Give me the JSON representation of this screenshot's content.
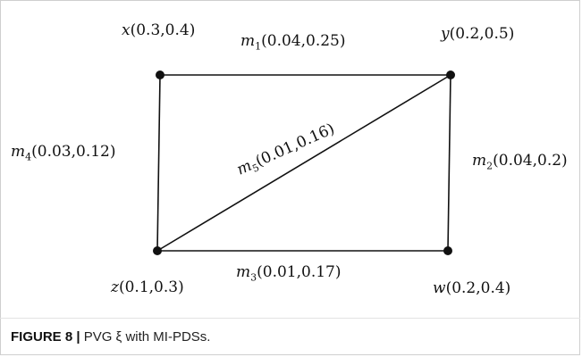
{
  "vertices": [
    {
      "id": "x",
      "name": "x",
      "value": "(0.3,0.4)"
    },
    {
      "id": "y",
      "name": "y",
      "value": "(0.2,0.5)"
    },
    {
      "id": "z",
      "name": "z",
      "value": "(0.1,0.3)"
    },
    {
      "id": "w",
      "name": "w",
      "value": "(0.2,0.4)"
    }
  ],
  "edges": [
    {
      "id": "m1",
      "from": "x",
      "to": "y",
      "name": "m",
      "sub": "1",
      "value": "(0.04,0.25)"
    },
    {
      "id": "m2",
      "from": "y",
      "to": "w",
      "name": "m",
      "sub": "2",
      "value": "(0.04,0.2)"
    },
    {
      "id": "m3",
      "from": "z",
      "to": "w",
      "name": "m",
      "sub": "3",
      "value": "(0.01,0.17)"
    },
    {
      "id": "m4",
      "from": "x",
      "to": "z",
      "name": "m",
      "sub": "4",
      "value": "(0.03,0.12)"
    },
    {
      "id": "m5",
      "from": "z",
      "to": "y",
      "name": "m",
      "sub": "5",
      "value": "(0.01,0.16)"
    }
  ],
  "caption": {
    "lead": "FIGURE 8 |",
    "text": " PVG ξ with MI-PDSs."
  }
}
